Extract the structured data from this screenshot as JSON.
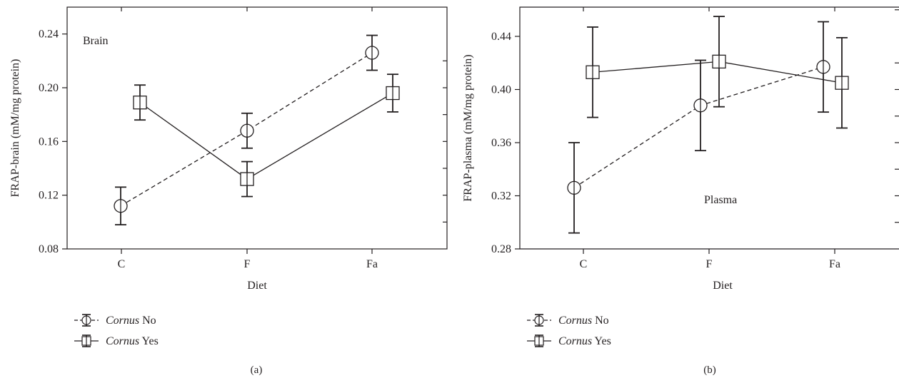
{
  "chart_data": [
    {
      "type": "line",
      "panel_caption": "(a)",
      "annotation": "Brain",
      "xlabel": "Diet",
      "ylabel": "FRAP-brain (mM/mg protein)",
      "categories": [
        "C",
        "F",
        "Fa"
      ],
      "ylim": [
        0.08,
        0.26
      ],
      "yticks": [
        "0.08",
        "0.12",
        "0.16",
        "0.20",
        "0.24"
      ],
      "ytick_values": [
        0.08,
        0.12,
        0.16,
        0.2,
        0.24
      ],
      "series": [
        {
          "legend_italic": "Cornus",
          "legend_rest": "No",
          "marker": "circle",
          "line_style": "dashed",
          "values": [
            0.112,
            0.168,
            0.226
          ],
          "err": [
            0.014,
            0.013,
            0.013
          ]
        },
        {
          "legend_italic": "Cornus",
          "legend_rest": "Yes",
          "marker": "square",
          "line_style": "solid",
          "values": [
            0.189,
            0.132,
            0.196
          ],
          "err": [
            0.013,
            0.013,
            0.014
          ]
        }
      ]
    },
    {
      "type": "line",
      "panel_caption": "(b)",
      "annotation": "Plasma",
      "xlabel": "Diet",
      "ylabel": "FRAP-plasma (mM/mg protein)",
      "categories": [
        "C",
        "F",
        "Fa"
      ],
      "ylim": [
        0.28,
        0.462
      ],
      "yticks": [
        "0.28",
        "0.32",
        "0.36",
        "0.40",
        "0.44"
      ],
      "ytick_values": [
        0.28,
        0.32,
        0.36,
        0.4,
        0.44
      ],
      "series": [
        {
          "legend_italic": "Cornus",
          "legend_rest": "No",
          "marker": "circle",
          "line_style": "dashed",
          "values": [
            0.326,
            0.388,
            0.417
          ],
          "err": [
            0.034,
            0.034,
            0.034
          ]
        },
        {
          "legend_italic": "Cornus",
          "legend_rest": "Yes",
          "marker": "square",
          "line_style": "solid",
          "values": [
            0.413,
            0.421,
            0.405
          ],
          "err": [
            0.034,
            0.034,
            0.034
          ]
        }
      ]
    }
  ]
}
